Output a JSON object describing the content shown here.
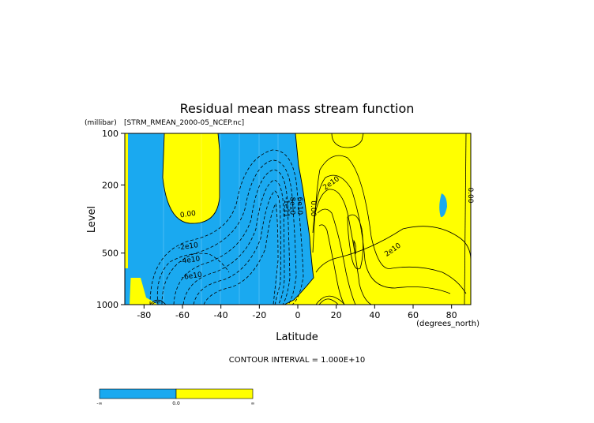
{
  "colors": {
    "negative": "#1aa9f0",
    "positive": "#ffff00",
    "line": "#000000"
  },
  "chart_data": {
    "type": "contour",
    "title": "Residual mean mass stream function",
    "subtitle": "[STRM_RMEAN_2000-05_NCEP.nc]",
    "xlabel": "Latitude",
    "x_units": "(degrees_north)",
    "ylabel": "Level",
    "y_units": "(millibar)",
    "xlim": [
      -90,
      90
    ],
    "ylim": [
      1000,
      100
    ],
    "y_scale": "log",
    "x_ticks": [
      -80,
      -60,
      -40,
      -20,
      0,
      20,
      40,
      60,
      80
    ],
    "x_tick_labels": [
      "-80",
      "-60",
      "-40",
      "-20",
      "0",
      "20",
      "40",
      "60",
      "80"
    ],
    "y_ticks": [
      1000,
      500,
      200,
      100
    ],
    "y_tick_labels": [
      "1000",
      "500",
      "200",
      "100"
    ],
    "contour_labels": [
      {
        "text": "0.00",
        "lat": -57,
        "level": 305
      },
      {
        "text": "-2e10",
        "lat": -57,
        "level": 470
      },
      {
        "text": "-4e10",
        "lat": -56,
        "level": 565
      },
      {
        "text": "-6e10",
        "lat": -55,
        "level": 700
      },
      {
        "text": "2e10",
        "lat": 18,
        "level": 200
      },
      {
        "text": "2e10",
        "lat": 50,
        "level": 490
      },
      {
        "text": "-1e11",
        "lat": -7,
        "level": 270
      },
      {
        "text": "8e10",
        "lat": -4,
        "level": 265
      },
      {
        "text": "6e10",
        "lat": 0,
        "level": 265
      },
      {
        "text": "0.00",
        "lat": 7,
        "level": 275
      },
      {
        "text": "0.00",
        "lat": 90,
        "level": 230
      }
    ],
    "contour_interval": "CONTOUR INTERVAL = 1.000E+10",
    "legend": {
      "labels": [
        "-∞",
        "0.0",
        "∞"
      ],
      "colors": [
        "negative",
        "positive"
      ]
    }
  }
}
